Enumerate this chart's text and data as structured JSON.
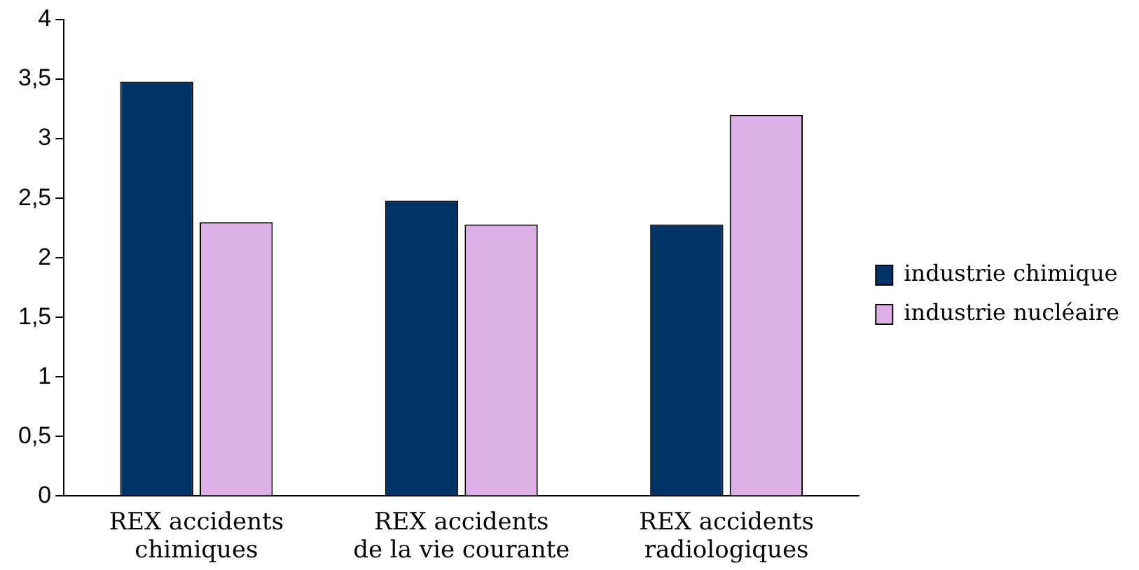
{
  "chart_data": {
    "type": "bar",
    "categories": [
      "REX accidents chimiques",
      "REX accidents de la vie courante",
      "REX accidents radiologiques"
    ],
    "series": [
      {
        "name": "industrie chimique",
        "color": "#003366",
        "values": [
          3.48,
          2.48,
          2.28
        ]
      },
      {
        "name": "industrie nucléaire",
        "color": "#dcb0e6",
        "values": [
          2.3,
          2.28,
          3.2
        ]
      }
    ],
    "ylim": [
      0,
      4
    ],
    "yticks": [
      0,
      {
        "value": 0.5,
        "label": "0,5"
      },
      1,
      {
        "value": 1.5,
        "label": "1,5"
      },
      2,
      {
        "value": 2.5,
        "label": "2,5"
      },
      3,
      {
        "value": 3.5,
        "label": "3,5"
      },
      4
    ],
    "grid": false,
    "legend": "right"
  }
}
